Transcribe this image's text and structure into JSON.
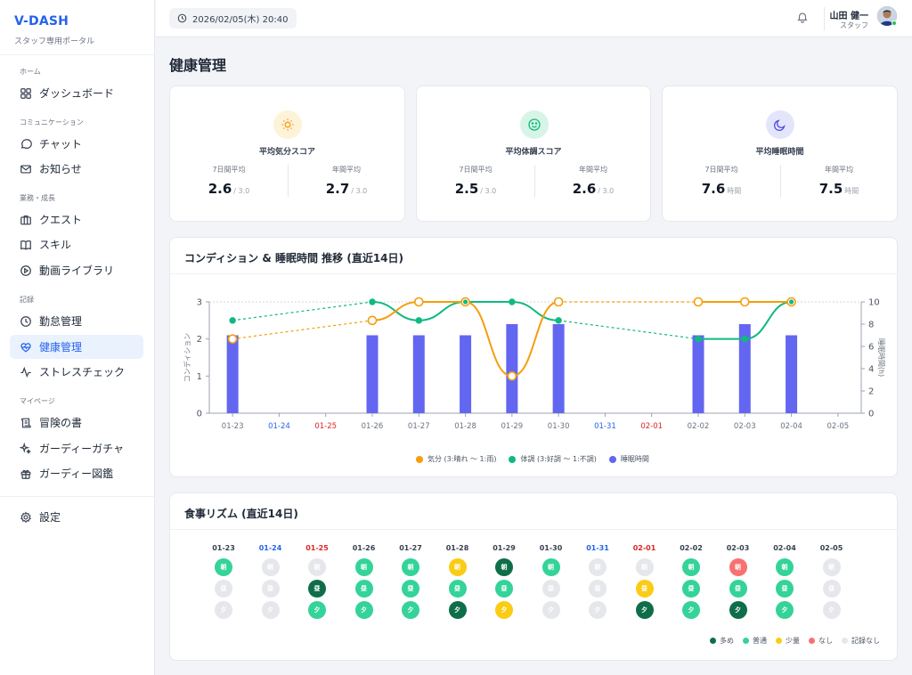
{
  "brand": {
    "title": "V-DASH",
    "subtitle": "スタッフ専用ポータル"
  },
  "sidebar": {
    "sections": [
      {
        "label": "ホーム",
        "items": [
          {
            "label": "ダッシュボード",
            "icon": "dashboard-icon"
          }
        ]
      },
      {
        "label": "コミュニケーション",
        "items": [
          {
            "label": "チャット",
            "icon": "chat-icon"
          },
          {
            "label": "お知らせ",
            "icon": "mail-icon"
          }
        ]
      },
      {
        "label": "業務・成長",
        "items": [
          {
            "label": "クエスト",
            "icon": "briefcase-icon"
          },
          {
            "label": "スキル",
            "icon": "book-icon"
          },
          {
            "label": "動画ライブラリ",
            "icon": "play-icon"
          }
        ]
      },
      {
        "label": "記録",
        "items": [
          {
            "label": "勤怠管理",
            "icon": "clock-icon"
          },
          {
            "label": "健康管理",
            "icon": "heart-pulse-icon",
            "active": true
          },
          {
            "label": "ストレスチェック",
            "icon": "activity-icon"
          }
        ]
      },
      {
        "label": "マイページ",
        "items": [
          {
            "label": "冒険の書",
            "icon": "scroll-icon"
          },
          {
            "label": "ガーディーガチャ",
            "icon": "sparkle-icon"
          },
          {
            "label": "ガーディー図鑑",
            "icon": "gift-icon"
          }
        ]
      }
    ],
    "settings": {
      "label": "設定",
      "icon": "gear-icon"
    }
  },
  "topbar": {
    "datetime": "2026/02/05(木) 20:40",
    "user_name": "山田 健一",
    "user_role": "スタッフ"
  },
  "page": {
    "title": "健康管理"
  },
  "stats": [
    {
      "title": "平均気分スコア",
      "icon": "sun-icon",
      "icon_color": "#f59e0b",
      "icon_bg": "#fdf3d9",
      "week_label": "7日間平均",
      "week_value": "2.6",
      "week_unit": "/ 3.0",
      "year_label": "年間平均",
      "year_value": "2.7",
      "year_unit": "/ 3.0"
    },
    {
      "title": "平均体調スコア",
      "icon": "smile-icon",
      "icon_color": "#10b981",
      "icon_bg": "#d7f5e7",
      "week_label": "7日間平均",
      "week_value": "2.5",
      "week_unit": "/ 3.0",
      "year_label": "年間平均",
      "year_value": "2.6",
      "year_unit": "/ 3.0"
    },
    {
      "title": "平均睡眠時間",
      "icon": "moon-icon",
      "icon_color": "#4f46e5",
      "icon_bg": "#e3e6fb",
      "week_label": "7日間平均",
      "week_value": "7.6",
      "week_unit": "時間",
      "year_label": "年間平均",
      "year_value": "7.5",
      "year_unit": "時間"
    }
  ],
  "condition_card": {
    "title": "コンディション & 睡眠時間 推移 (直近14日)"
  },
  "chart_data": {
    "type": "bar+line",
    "categories": [
      "01-23",
      "01-24",
      "01-25",
      "01-26",
      "01-27",
      "01-28",
      "01-29",
      "01-30",
      "01-31",
      "02-01",
      "02-02",
      "02-03",
      "02-04",
      "02-05"
    ],
    "category_colors": [
      "#6b7280",
      "#2563eb",
      "#dc2626",
      "#6b7280",
      "#6b7280",
      "#6b7280",
      "#6b7280",
      "#6b7280",
      "#2563eb",
      "#dc2626",
      "#6b7280",
      "#6b7280",
      "#6b7280",
      "#6b7280"
    ],
    "ylabel_left": "コンディション",
    "ylabel_right": "睡眠時間(h)",
    "ylim_left": [
      0,
      3
    ],
    "ylim_right": [
      0,
      10
    ],
    "yticks_left": [
      "0",
      "1",
      "2",
      "3"
    ],
    "yticks_right": [
      "0",
      "2",
      "4",
      "6",
      "8",
      "10"
    ],
    "series": [
      {
        "name": "気分 (3:晴れ 〜 1:雨)",
        "kind": "line",
        "axis": "left",
        "color": "#f59e0b",
        "values": [
          2.0,
          null,
          null,
          2.5,
          3,
          3,
          1,
          3,
          null,
          null,
          3,
          3,
          3,
          null
        ]
      },
      {
        "name": "体調 (3:好調 〜 1:不調)",
        "kind": "line",
        "axis": "left",
        "color": "#10b981",
        "values": [
          2.5,
          null,
          null,
          3,
          2.5,
          3,
          3,
          2.5,
          null,
          null,
          2,
          2,
          3,
          null
        ]
      },
      {
        "name": "睡眠時間",
        "kind": "bar",
        "axis": "right",
        "color": "#6366f1",
        "values": [
          7,
          null,
          null,
          7,
          7,
          7,
          8,
          8,
          null,
          null,
          7,
          8,
          7,
          null
        ]
      }
    ]
  },
  "meal_card": {
    "title": "食事リズム (直近14日)",
    "days": [
      {
        "date": "01-23",
        "color": "#374151",
        "meals": [
          "普通",
          "記録なし",
          "記録なし"
        ]
      },
      {
        "date": "01-24",
        "color": "#2563eb",
        "meals": [
          "記録なし",
          "記録なし",
          "記録なし"
        ]
      },
      {
        "date": "01-25",
        "color": "#dc2626",
        "meals": [
          "記録なし",
          "多め",
          "普通"
        ]
      },
      {
        "date": "01-26",
        "color": "#374151",
        "meals": [
          "普通",
          "普通",
          "普通"
        ]
      },
      {
        "date": "01-27",
        "color": "#374151",
        "meals": [
          "普通",
          "普通",
          "普通"
        ]
      },
      {
        "date": "01-28",
        "color": "#374151",
        "meals": [
          "少量",
          "普通",
          "多め"
        ]
      },
      {
        "date": "01-29",
        "color": "#374151",
        "meals": [
          "多め",
          "普通",
          "少量"
        ]
      },
      {
        "date": "01-30",
        "color": "#374151",
        "meals": [
          "普通",
          "記録なし",
          "記録なし"
        ]
      },
      {
        "date": "01-31",
        "color": "#2563eb",
        "meals": [
          "記録なし",
          "記録なし",
          "記録なし"
        ]
      },
      {
        "date": "02-01",
        "color": "#dc2626",
        "meals": [
          "記録なし",
          "少量",
          "多め"
        ]
      },
      {
        "date": "02-02",
        "color": "#374151",
        "meals": [
          "普通",
          "普通",
          "普通"
        ]
      },
      {
        "date": "02-03",
        "color": "#374151",
        "meals": [
          "なし",
          "普通",
          "多め"
        ]
      },
      {
        "date": "02-04",
        "color": "#374151",
        "meals": [
          "普通",
          "普通",
          "普通"
        ]
      },
      {
        "date": "02-05",
        "color": "#374151",
        "meals": [
          "記録なし",
          "記録なし",
          "記録なし"
        ]
      }
    ],
    "meal_labels": [
      "朝",
      "昼",
      "夕"
    ],
    "legend": [
      {
        "label": "多め",
        "color": "#0f6e4a"
      },
      {
        "label": "普通",
        "color": "#34d399"
      },
      {
        "label": "少量",
        "color": "#facc15"
      },
      {
        "label": "なし",
        "color": "#f87171"
      },
      {
        "label": "記録なし",
        "color": "#e5e7eb"
      }
    ]
  }
}
